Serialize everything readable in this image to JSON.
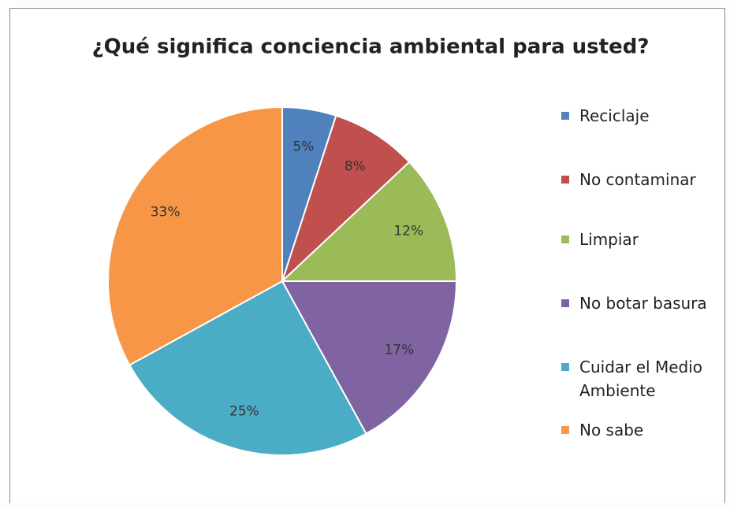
{
  "chart_data": {
    "type": "pie",
    "title": "¿Qué significa conciencia ambiental para usted?",
    "categories": [
      "Reciclaje",
      "No contaminar",
      "Limpiar",
      "No botar basura",
      "Cuidar el Medio Ambiente",
      "No sabe"
    ],
    "values": [
      5,
      8,
      12,
      17,
      25,
      33
    ],
    "value_labels": [
      "5%",
      "8%",
      "12%",
      "17%",
      "25%",
      "33%"
    ],
    "colors": [
      "#4f81bd",
      "#c0504d",
      "#9bbb59",
      "#8064a2",
      "#4bacc6",
      "#f79646"
    ],
    "legend": "right"
  }
}
